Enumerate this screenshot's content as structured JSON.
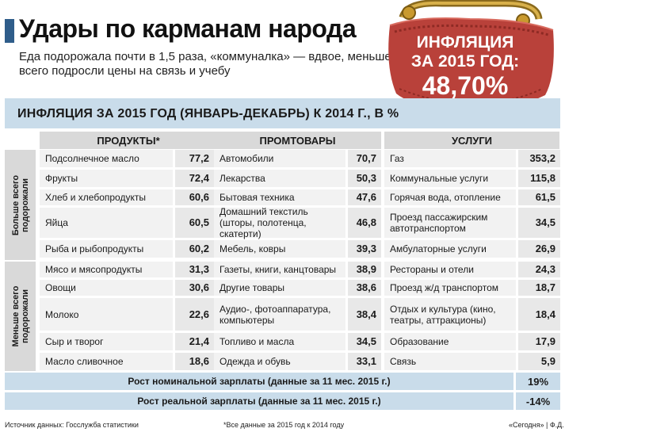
{
  "header": {
    "title": "Удары по карманам народа",
    "subtitle": "Еда подорожала почти в 1,5 раза, «коммуналка» — вдвое, меньше всего подросли цены на связь и учебу"
  },
  "badge": {
    "label_line1": "ИНФЛЯЦИЯ",
    "label_line2": "ЗА 2015 ГОД:",
    "value": "48,70%"
  },
  "table": {
    "title": "ИНФЛЯЦИЯ ЗА 2015 ГОД (ЯНВАРЬ-ДЕКАБРЬ) К 2014 Г., В %",
    "columns": [
      "ПРОДУКТЫ*",
      "ПРОМТОВАРЫ",
      "УСЛУГИ"
    ],
    "groups": [
      "Больше всего подорожали",
      "Меньше всего подорожали"
    ],
    "rows": [
      {
        "food": "Подсолнечное масло",
        "food_v": "77,2",
        "goods": "Автомобили",
        "goods_v": "70,7",
        "serv": "Газ",
        "serv_v": "353,2"
      },
      {
        "food": "Фрукты",
        "food_v": "72,4",
        "goods": "Лекарства",
        "goods_v": "50,3",
        "serv": "Коммунальные услуги",
        "serv_v": "115,8"
      },
      {
        "food": "Хлеб и хлебопродукты",
        "food_v": "60,6",
        "goods": "Бытовая техника",
        "goods_v": "47,6",
        "serv": "Горячая вода, отопление",
        "serv_v": "61,5"
      },
      {
        "food": "Яйца",
        "food_v": "60,5",
        "goods": "Домашний текстиль (шторы, полотенца, скатерти)",
        "goods_v": "46,8",
        "serv": "Проезд пассажирским автотранспортом",
        "serv_v": "34,5"
      },
      {
        "food": "Рыба и рыбопродукты",
        "food_v": "60,2",
        "goods": "Мебель, ковры",
        "goods_v": "39,3",
        "serv": "Амбулаторные услуги",
        "serv_v": "26,9"
      },
      {
        "food": "Мясо и мясопродукты",
        "food_v": "31,3",
        "goods": "Газеты, книги, канцтовары",
        "goods_v": "38,9",
        "serv": "Рестораны и отели",
        "serv_v": "24,3"
      },
      {
        "food": "Овощи",
        "food_v": "30,6",
        "goods": "Другие товары",
        "goods_v": "38,6",
        "serv": "Проезд ж/д транспортом",
        "serv_v": "18,7"
      },
      {
        "food": "Молоко",
        "food_v": "22,6",
        "goods": "Аудио-, фотоаппаратура, компьютеры",
        "goods_v": "38,4",
        "serv": "Отдых и культура (кино, театры, аттракционы)",
        "serv_v": "18,4"
      },
      {
        "food": "Сыр и творог",
        "food_v": "21,4",
        "goods": "Топливо и масла",
        "goods_v": "34,5",
        "serv": "Образование",
        "serv_v": "17,9"
      },
      {
        "food": "Масло сливочное",
        "food_v": "18,6",
        "goods": "Одежда и обувь",
        "goods_v": "33,1",
        "serv": "Связь",
        "serv_v": "5,9"
      }
    ],
    "wages": [
      {
        "label": "Рост номинальной зарплаты (данные за 11 мес. 2015 г.)",
        "value": "19%"
      },
      {
        "label": "Рост реальной зарплаты (данные за 11 мес. 2015 г.)",
        "value": "-14%"
      }
    ]
  },
  "footer": {
    "source": "Источник данных: Госслужба статистики",
    "note": "*Все данные за 2015 год к 2014 году",
    "credit": "«Сегодня» | Ф.Д."
  }
}
